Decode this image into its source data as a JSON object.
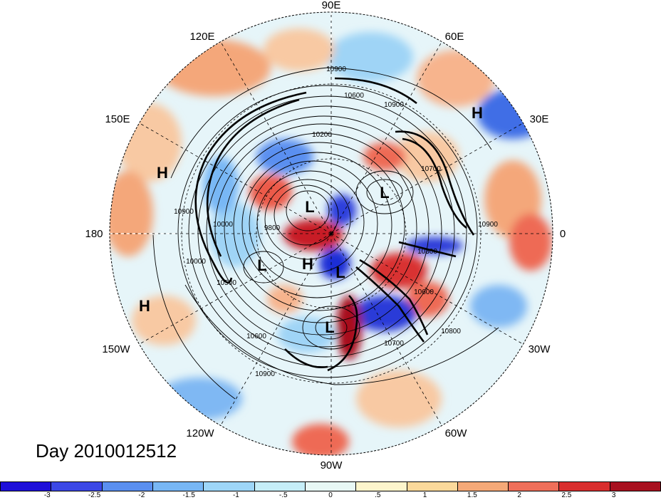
{
  "map": {
    "longitude_labels": {
      "lon_90e": "90E",
      "lon_60e": "60E",
      "lon_30e": "30E",
      "lon_0": "0",
      "lon_30w": "30W",
      "lon_60w": "60W",
      "lon_90w": "90W",
      "lon_120w": "120W",
      "lon_150w": "150W",
      "lon_180": "180",
      "lon_150e": "150E",
      "lon_120e": "120E"
    },
    "pressure_centers": {
      "h1": "H",
      "h2": "H",
      "h3": "H",
      "h4": "H",
      "l1": "L",
      "l2": "L",
      "l3": "L",
      "l4": "L",
      "l5": "L"
    },
    "contour_labels": {
      "c1": "10900",
      "c2": "10600",
      "c3": "10900",
      "c4": "10200",
      "c5": "10900",
      "c6": "10000",
      "c7": "9800",
      "c8": "10700",
      "c9": "10900",
      "c10": "10300",
      "c11": "10600",
      "c12": "10800",
      "c13": "10700",
      "c14": "10600",
      "c15": "10900",
      "c16": "10500",
      "c17": "10000"
    }
  },
  "title": {
    "day_label": "Day 2010012512"
  },
  "colorbar": {
    "ticks": [
      "-3",
      "-2.5",
      "-2",
      "-1.5",
      "-1",
      "-.5",
      "0",
      ".5",
      "1",
      "1.5",
      "2",
      "2.5",
      "3"
    ],
    "colors": [
      "#1e0fd9",
      "#3c48e6",
      "#5a8ff0",
      "#78b7f5",
      "#9ed6f8",
      "#c6eef8",
      "#e8f8f5",
      "#fdf5cc",
      "#fbd99b",
      "#f5a978",
      "#ef6f5a",
      "#d92e2e",
      "#a8101f"
    ]
  }
}
